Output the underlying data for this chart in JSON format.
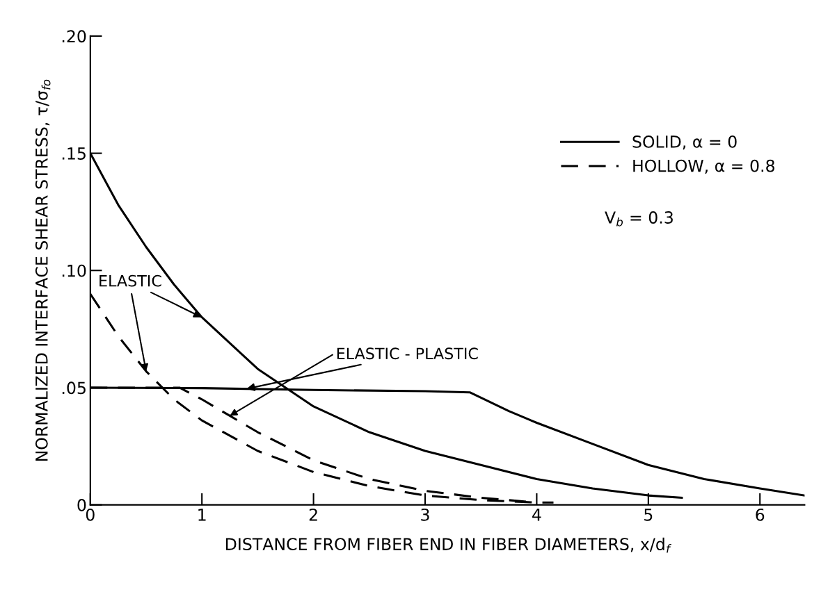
{
  "chart_data": {
    "type": "line",
    "xlabel": "DISTANCE FROM FIBER END IN FIBER DIAMETERS, x/d$_{f}$",
    "ylabel": "NORMALIZED INTERFACE SHEAR STRESS, τ/σ$_{fo}$",
    "xlim": [
      0,
      6.4
    ],
    "xticks": [
      0,
      1,
      2,
      3,
      4,
      5,
      6
    ],
    "ylim": [
      0,
      0.2
    ],
    "yticks": [
      {
        "value": 0,
        "label": "0"
      },
      {
        "value": 0.05,
        "label": ".05"
      },
      {
        "value": 0.1,
        "label": ".10"
      },
      {
        "value": 0.15,
        "label": ".15"
      },
      {
        "value": 0.2,
        "label": ".20"
      }
    ],
    "grid": false,
    "legend": "top right",
    "marker": "none",
    "series": [
      {
        "name": "SOLID, α = 0",
        "color": "#000000",
        "line_style": "solid",
        "x": [
          0,
          0.25,
          0.5,
          0.75,
          1,
          1.5,
          2,
          2.5,
          3,
          3.5,
          4,
          4.5,
          5,
          5.3
        ],
        "values": [
          0.15,
          0.128,
          0.11,
          0.094,
          0.08,
          0.058,
          0.042,
          0.031,
          0.023,
          0.017,
          0.011,
          0.007,
          0.004,
          0.003
        ]
      },
      {
        "color": "#000000",
        "line_style": "solid",
        "x": [
          0,
          1,
          2,
          3,
          3.4,
          3.75,
          4,
          4.5,
          5,
          5.5,
          6,
          6.4
        ],
        "values": [
          0.05,
          0.0498,
          0.049,
          0.0485,
          0.048,
          0.04,
          0.035,
          0.026,
          0.017,
          0.011,
          0.007,
          0.004
        ]
      },
      {
        "name": "HOLLOW, α = 0.8",
        "color": "#000000",
        "line_style": "dashed",
        "x": [
          0,
          0.25,
          0.5,
          0.75,
          1,
          1.5,
          2,
          2.5,
          3,
          3.5,
          4,
          4.15
        ],
        "values": [
          0.09,
          0.072,
          0.057,
          0.045,
          0.036,
          0.023,
          0.014,
          0.008,
          0.004,
          0.002,
          0.001,
          0.001
        ]
      },
      {
        "color": "#000000",
        "line_style": "dashed",
        "x": [
          0,
          0.8,
          1,
          1.25,
          1.5,
          2,
          2.5,
          3,
          3.5,
          4
        ],
        "values": [
          0.05,
          0.05,
          0.045,
          0.038,
          0.031,
          0.019,
          0.011,
          0.006,
          0.003,
          0.001
        ]
      }
    ],
    "annotations": [
      {
        "text": "ELASTIC",
        "x": 1.0,
        "y": 0.08
      },
      {
        "text": "ELASTIC - PLASTIC",
        "x": 1.4,
        "y": 0.0495
      },
      "V$_{b}$ = 0.3"
    ]
  }
}
